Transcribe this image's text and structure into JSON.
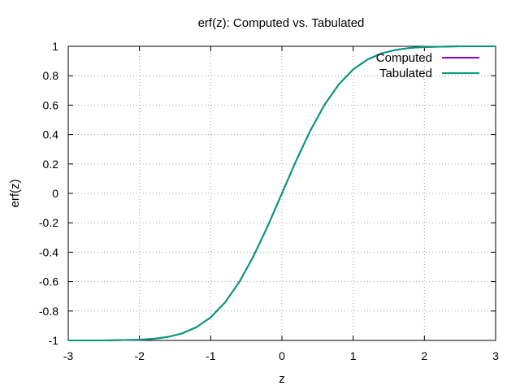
{
  "chart_data": {
    "type": "line",
    "title": "erf(z): Computed vs. Tabulated",
    "xlabel": "z",
    "ylabel": "erf(z)",
    "xlim": [
      -3,
      3
    ],
    "ylim": [
      -1,
      1
    ],
    "xticks": [
      -3,
      -2,
      -1,
      0,
      1,
      2,
      3
    ],
    "yticks": [
      -1,
      -0.8,
      -0.6,
      -0.4,
      -0.2,
      0,
      0.2,
      0.4,
      0.6,
      0.8,
      1
    ],
    "grid": true,
    "legend_position": "top-right",
    "x": [
      -3.0,
      -2.5,
      -2.0,
      -1.8,
      -1.6,
      -1.4,
      -1.2,
      -1.0,
      -0.8,
      -0.6,
      -0.4,
      -0.2,
      0.0,
      0.2,
      0.4,
      0.6,
      0.8,
      1.0,
      1.2,
      1.4,
      1.6,
      1.8,
      2.0,
      2.5,
      3.0
    ],
    "series": [
      {
        "name": "Computed",
        "color": "#9400d3",
        "values": [
          -1.0,
          -1.0,
          -0.995,
          -0.989,
          -0.976,
          -0.952,
          -0.91,
          -0.843,
          -0.742,
          -0.604,
          -0.428,
          -0.223,
          0.0,
          0.223,
          0.428,
          0.604,
          0.742,
          0.843,
          0.91,
          0.952,
          0.976,
          0.989,
          0.995,
          1.0,
          1.0
        ]
      },
      {
        "name": "Tabulated",
        "color": "#009e73",
        "values": [
          -1.0,
          -1.0,
          -0.995,
          -0.989,
          -0.976,
          -0.952,
          -0.91,
          -0.843,
          -0.742,
          -0.604,
          -0.428,
          -0.223,
          0.0,
          0.223,
          0.428,
          0.604,
          0.742,
          0.843,
          0.91,
          0.952,
          0.976,
          0.989,
          0.995,
          1.0,
          1.0
        ]
      }
    ]
  }
}
